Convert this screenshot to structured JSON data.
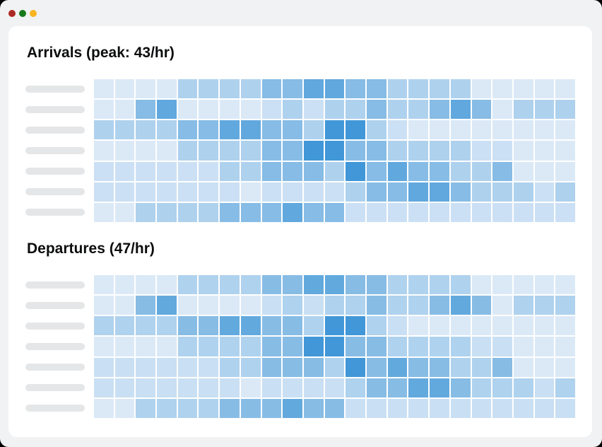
{
  "window": {
    "traffic_lights": [
      {
        "name": "close",
        "color": "#ab2a26"
      },
      {
        "name": "zoom",
        "color": "#18791b"
      },
      {
        "name": "minimize",
        "color": "#f7b521"
      }
    ],
    "background": "#f1f2f3",
    "card_background": "#ffffff"
  },
  "colors": {
    "row_label_skeleton": "#e4e6e8",
    "heatmap_gap": "#ffffff"
  },
  "sections": [
    {
      "title": "Arrivals (peak: 43/hr)"
    },
    {
      "title": "Departures (47/hr)"
    }
  ],
  "chart_data": [
    {
      "type": "heatmap",
      "title": "Arrivals (peak: 43/hr)",
      "unit": "arrivals per hour",
      "peak_per_hour": 43,
      "rows": 7,
      "cols": 23,
      "row_labels": [
        "",
        "",
        "",
        "",
        "",
        "",
        ""
      ],
      "row_labels_note": "rows labeled only by gray skeleton placeholder pills",
      "col_labels": [],
      "legend": "none",
      "scale": {
        "min_value": 5,
        "max_value": 43,
        "min_color": "#dbe9f7",
        "max_color": "#4197d7"
      },
      "values": [
        [
          5,
          5,
          5,
          5,
          16,
          16,
          16,
          16,
          26,
          26,
          35,
          35,
          26,
          26,
          16,
          16,
          16,
          16,
          5,
          5,
          5,
          5,
          5
        ],
        [
          5,
          5,
          26,
          35,
          5,
          5,
          5,
          5,
          9,
          16,
          9,
          16,
          16,
          26,
          16,
          16,
          26,
          35,
          26,
          5,
          16,
          16,
          16
        ],
        [
          16,
          16,
          16,
          16,
          26,
          26,
          35,
          35,
          26,
          26,
          16,
          43,
          43,
          16,
          9,
          5,
          5,
          5,
          5,
          5,
          5,
          5,
          5
        ],
        [
          5,
          5,
          5,
          5,
          16,
          16,
          16,
          16,
          26,
          26,
          43,
          43,
          26,
          26,
          16,
          16,
          16,
          16,
          9,
          9,
          5,
          5,
          5
        ],
        [
          9,
          9,
          9,
          9,
          9,
          9,
          16,
          16,
          26,
          26,
          26,
          16,
          43,
          26,
          35,
          26,
          26,
          16,
          16,
          26,
          5,
          5,
          5
        ],
        [
          9,
          9,
          9,
          9,
          9,
          9,
          9,
          5,
          9,
          9,
          9,
          9,
          16,
          26,
          26,
          35,
          35,
          26,
          16,
          16,
          16,
          9,
          16
        ],
        [
          5,
          5,
          16,
          16,
          16,
          16,
          26,
          26,
          26,
          35,
          26,
          26,
          9,
          9,
          9,
          9,
          9,
          9,
          9,
          9,
          9,
          9,
          9
        ]
      ]
    },
    {
      "type": "heatmap",
      "title": "Departures (47/hr)",
      "unit": "departures per hour",
      "peak_per_hour": 47,
      "rows": 7,
      "cols": 23,
      "row_labels": [
        "",
        "",
        "",
        "",
        "",
        "",
        ""
      ],
      "row_labels_note": "rows labeled only by gray skeleton placeholder pills",
      "col_labels": [],
      "legend": "none",
      "scale": {
        "min_value": 5,
        "max_value": 47,
        "min_color": "#dbe9f7",
        "max_color": "#4197d7"
      },
      "values": [
        [
          5,
          5,
          5,
          5,
          17,
          17,
          17,
          17,
          28,
          28,
          38,
          38,
          28,
          28,
          17,
          17,
          17,
          17,
          5,
          5,
          5,
          5,
          5
        ],
        [
          5,
          5,
          28,
          38,
          5,
          5,
          5,
          5,
          10,
          17,
          10,
          17,
          17,
          28,
          17,
          17,
          28,
          38,
          28,
          5,
          17,
          17,
          17
        ],
        [
          17,
          17,
          17,
          17,
          28,
          28,
          38,
          38,
          28,
          28,
          17,
          47,
          47,
          17,
          10,
          5,
          5,
          5,
          5,
          5,
          5,
          5,
          5
        ],
        [
          5,
          5,
          5,
          5,
          17,
          17,
          17,
          17,
          28,
          28,
          47,
          47,
          28,
          28,
          17,
          17,
          17,
          17,
          10,
          10,
          5,
          5,
          5
        ],
        [
          10,
          10,
          10,
          10,
          10,
          10,
          17,
          17,
          28,
          28,
          28,
          17,
          47,
          28,
          38,
          28,
          28,
          17,
          17,
          28,
          5,
          5,
          5
        ],
        [
          10,
          10,
          10,
          10,
          10,
          10,
          10,
          5,
          10,
          10,
          10,
          10,
          17,
          28,
          28,
          38,
          38,
          28,
          17,
          17,
          17,
          10,
          17
        ],
        [
          5,
          5,
          17,
          17,
          17,
          17,
          28,
          28,
          28,
          38,
          28,
          28,
          10,
          10,
          10,
          10,
          10,
          10,
          10,
          10,
          10,
          10,
          10
        ]
      ]
    }
  ]
}
